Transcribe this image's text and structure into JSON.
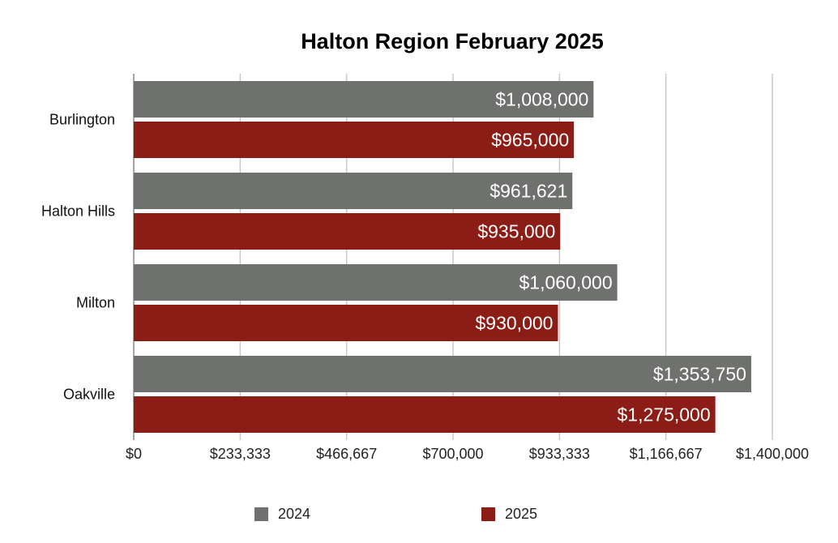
{
  "chart_data": {
    "type": "bar",
    "orientation": "horizontal",
    "title": "Halton Region February 2025",
    "categories": [
      "Burlington",
      "Halton Hills",
      "Milton",
      "Oakville"
    ],
    "series": [
      {
        "name": "2024",
        "color": "#6f716e",
        "values": [
          1008000,
          961621,
          1060000,
          1353750
        ],
        "labels": [
          "$1,008,000",
          "$961,621",
          "$1,060,000",
          "$1,353,750"
        ]
      },
      {
        "name": "2025",
        "color": "#8c1c16",
        "values": [
          965000,
          935000,
          930000,
          1275000
        ],
        "labels": [
          "$965,000",
          "$935,000",
          "$930,000",
          "$1,275,000"
        ]
      }
    ],
    "xlim": [
      0,
      1400000
    ],
    "x_ticks": [
      0,
      233333,
      466667,
      700000,
      933333,
      1166667,
      1400000
    ],
    "x_tick_labels": [
      "$0",
      "$233,333",
      "$466,667",
      "$700,000",
      "$933,333",
      "$1,166,667",
      "$1,400,000"
    ],
    "grid": true,
    "legend_position": "bottom"
  }
}
